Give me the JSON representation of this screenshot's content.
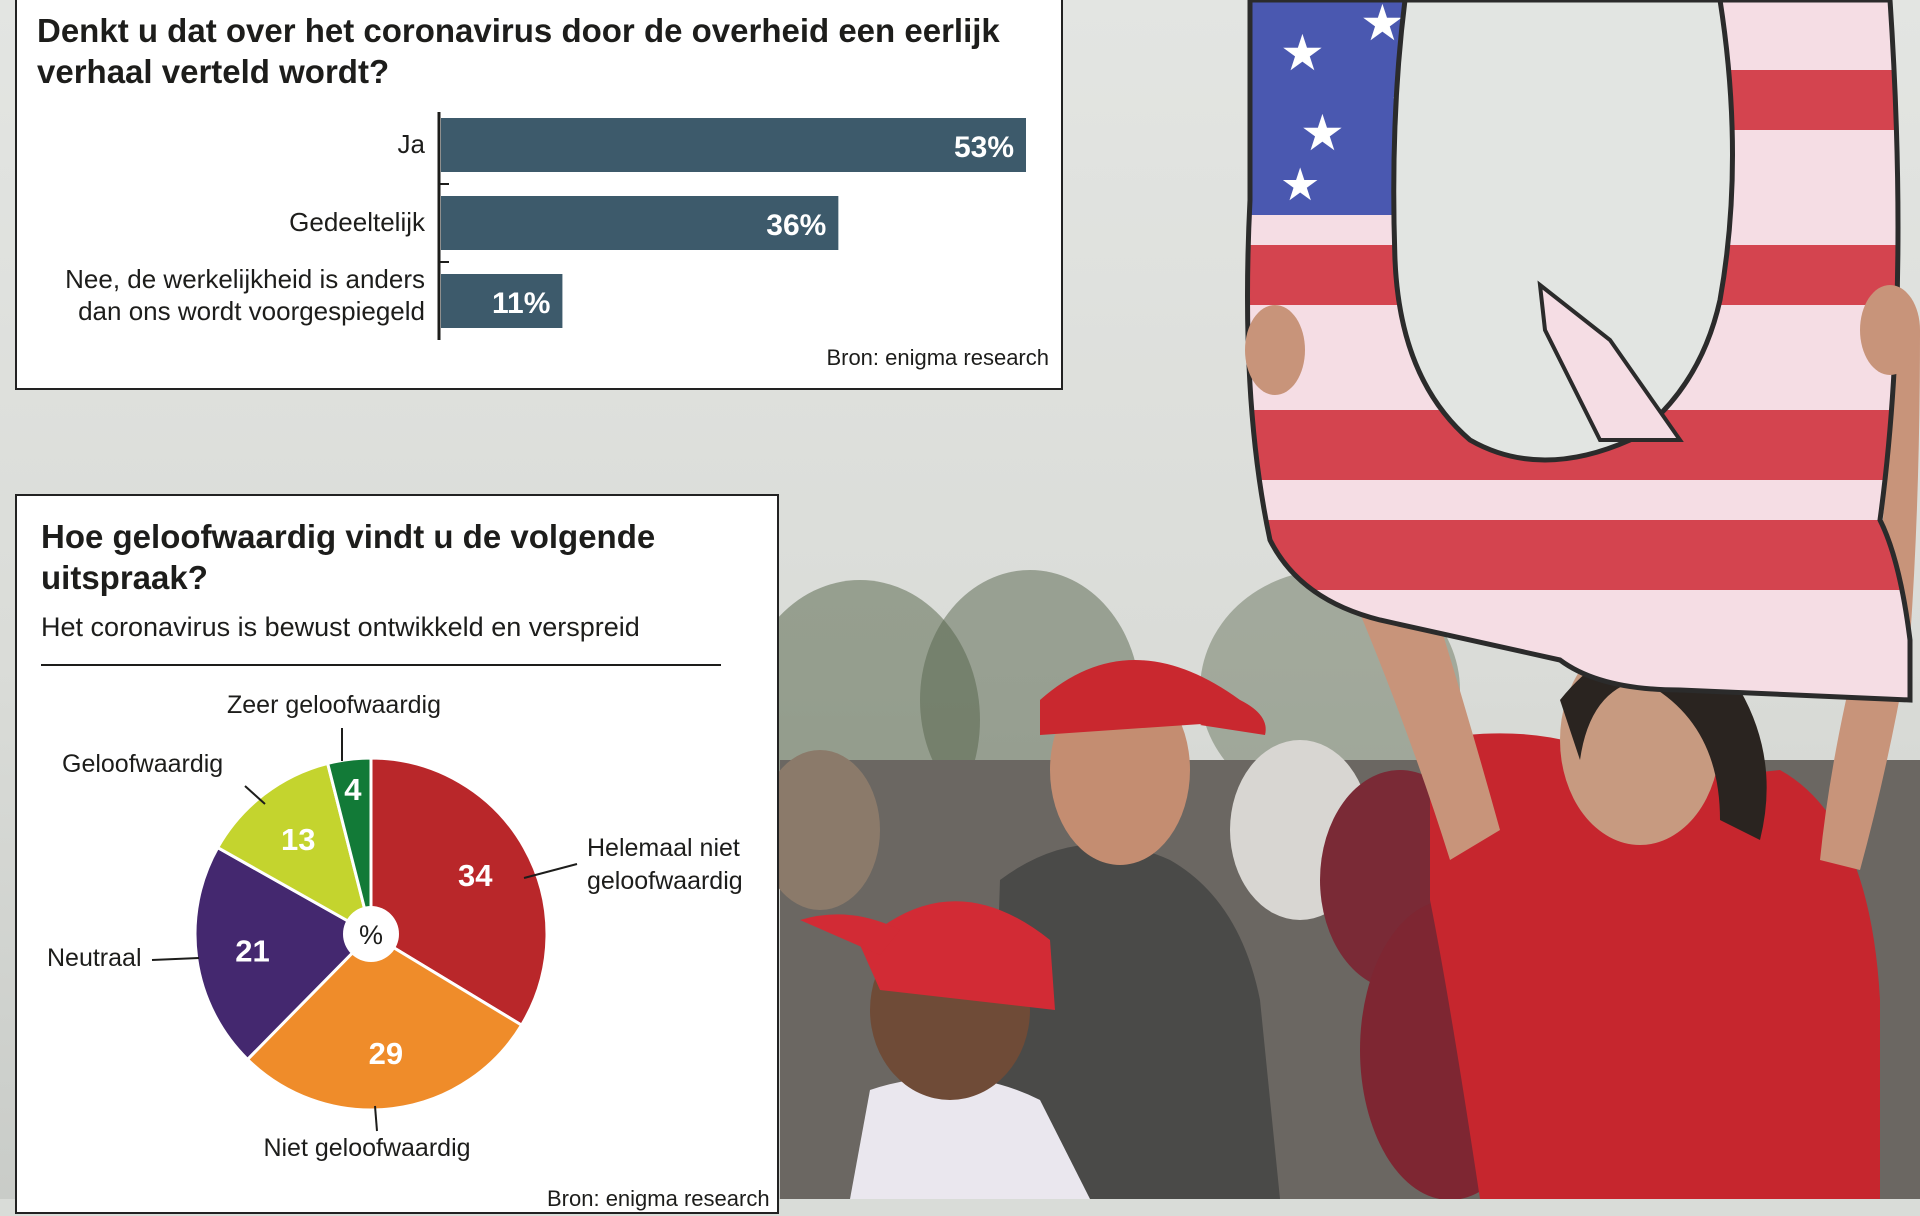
{
  "chart_data": [
    {
      "type": "bar",
      "orientation": "horizontal",
      "title": "Denkt u dat over het coronavirus door de overheid een eerlijk verhaal verteld wordt?",
      "categories": [
        "Ja",
        "Gedeeltelijk",
        "Nee, de werkelijkheid is anders dan ons wordt voorgespiegeld"
      ],
      "values": [
        53,
        36,
        11
      ],
      "value_labels": [
        "53%",
        "36%",
        "11%"
      ],
      "source": "Bron: enigma research",
      "colors": {
        "bar": "#3d5a6b"
      }
    },
    {
      "type": "pie",
      "title": "Hoe geloofwaardig vindt u de volgende uitspraak?",
      "subtitle": "Het coronavirus is bewust ontwikkeld en verspreid",
      "center_label": "%",
      "slices": [
        {
          "label": "Helemaal niet geloofwaardig",
          "value": 34,
          "color": "#b9272a"
        },
        {
          "label": "Niet geloofwaardig",
          "value": 29,
          "color": "#ef8c2a"
        },
        {
          "label": "Neutraal",
          "value": 21,
          "color": "#44286f"
        },
        {
          "label": "Geloofwaardig",
          "value": 13,
          "color": "#c4d42e"
        },
        {
          "label": "Zeer geloofwaardig",
          "value": 4,
          "color": "#127a37"
        }
      ],
      "source": "Bron: enigma research"
    }
  ]
}
